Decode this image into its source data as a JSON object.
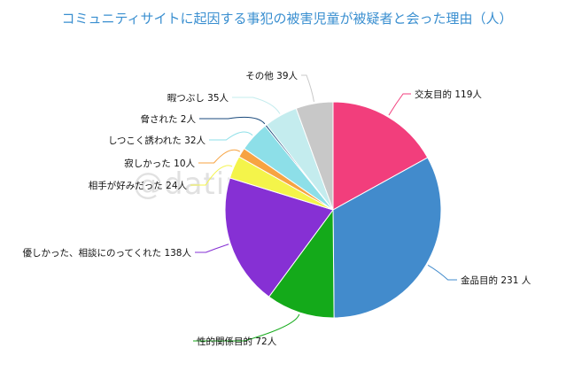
{
  "title": "コミュニティサイトに起因する事犯の被害児童が被疑者と会った理由（人）",
  "watermark": "@datingapps.info",
  "chart_data": {
    "type": "pie",
    "unit": "人",
    "slices": [
      {
        "label": "交友目的",
        "value": 119,
        "display": "交友目的 119人",
        "color": "#f23e7c"
      },
      {
        "label": "金品目的",
        "value": 231,
        "display": "金品目的 231 人",
        "color": "#428bcc"
      },
      {
        "label": "性的関係目的",
        "value": 72,
        "display": "性的関係目的 72人",
        "color": "#14aa1a"
      },
      {
        "label": "優しかった、相談にのってくれた",
        "value": 138,
        "display": "優しかった、相談にのってくれた 138人",
        "color": "#8630d4"
      },
      {
        "label": "相手が好みだった",
        "value": 24,
        "display": "相手が好みだった 24人",
        "color": "#f4f44a"
      },
      {
        "label": "寂しかった",
        "value": 10,
        "display": "寂しかった 10人",
        "color": "#f7a342"
      },
      {
        "label": "しつこく誘われた",
        "value": 32,
        "display": "しつこく誘われた 32人",
        "color": "#8ddfe8"
      },
      {
        "label": "脅された",
        "value": 2,
        "display": "脅された 2人",
        "color": "#1a4a7c"
      },
      {
        "label": "暇つぶし",
        "value": 35,
        "display": "暇つぶし 35人",
        "color": "#c4ecee"
      },
      {
        "label": "その他",
        "value": 39,
        "display": "その他 39人",
        "color": "#c8c8c8"
      }
    ]
  }
}
